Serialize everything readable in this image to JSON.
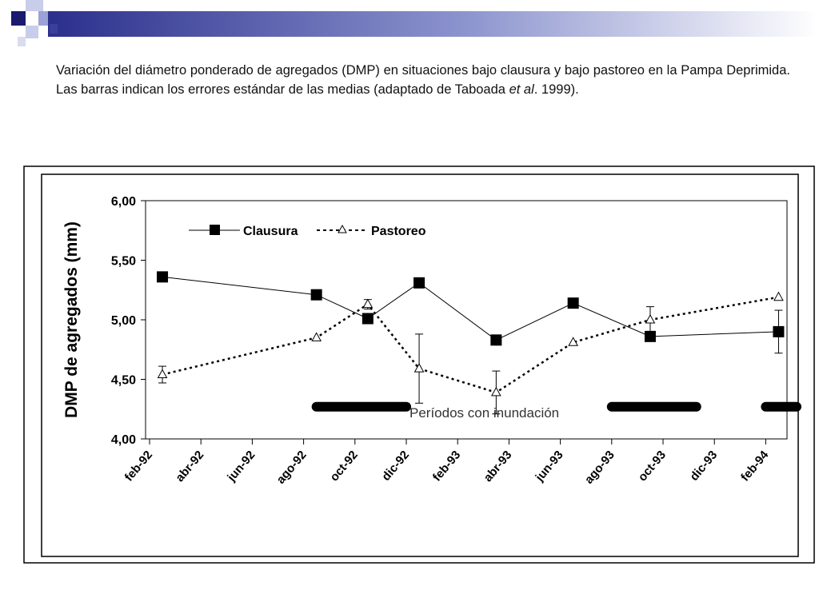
{
  "caption": {
    "text": "Variación del diámetro ponderado de agregados (DMP) en situaciones bajo clausura y bajo pastoreo en la Pampa Deprimida. Las barras indican los errores estándar de las medias (adaptado de Taboada ",
    "italic": "et al",
    "tail": ". 1999)."
  },
  "colors": {
    "banner_dark": "#1a1a6e",
    "banner_mid": "#3a3f9e",
    "banner_light": "#b8bfe6",
    "ink": "#000000"
  },
  "chart_data": {
    "type": "line",
    "ylabel": "DMP de agregados (mm)",
    "xlabel": "",
    "ylim": [
      4.0,
      6.0
    ],
    "yticks": [
      4.0,
      4.5,
      5.0,
      5.5,
      6.0
    ],
    "ytick_labels": [
      "4,00",
      "4,50",
      "5,00",
      "5,50",
      "6,00"
    ],
    "xlim": [
      0,
      24.4
    ],
    "xticks": [
      0,
      2,
      4,
      6,
      8,
      10,
      12,
      14,
      16,
      18,
      20,
      22,
      24
    ],
    "xtick_labels": [
      "feb-92",
      "abr-92",
      "jun-92",
      "ago-92",
      "oct-92",
      "dic-92",
      "feb-93",
      "abr-93",
      "jun-93",
      "ago-93",
      "oct-93",
      "dic-93",
      "feb-94"
    ],
    "legend_position": "top-left",
    "series": [
      {
        "name": "Clausura",
        "style": "solid",
        "marker": "square",
        "x": [
          0.5,
          6.5,
          8.5,
          10.5,
          13.5,
          16.5,
          19.5,
          24.5
        ],
        "y": [
          5.36,
          5.21,
          5.01,
          5.31,
          4.83,
          5.14,
          4.86,
          4.9
        ],
        "err": [
          0,
          0,
          0,
          0,
          0,
          0,
          0,
          0.18
        ]
      },
      {
        "name": "Pastoreo",
        "style": "dotted",
        "marker": "triangle",
        "x": [
          0.5,
          6.5,
          8.5,
          10.5,
          13.5,
          16.5,
          19.5,
          24.5
        ],
        "y": [
          4.54,
          4.85,
          5.13,
          4.59,
          4.39,
          4.81,
          5.0,
          5.19
        ],
        "err": [
          0.07,
          0,
          0.04,
          0.29,
          0.18,
          0,
          0.11,
          0
        ]
      }
    ],
    "flood_periods": {
      "label": "Períodos con inundación",
      "ranges": [
        [
          6.5,
          10.0
        ],
        [
          18.0,
          21.3
        ],
        [
          24.0,
          25.4
        ]
      ],
      "y": 4.27
    }
  }
}
